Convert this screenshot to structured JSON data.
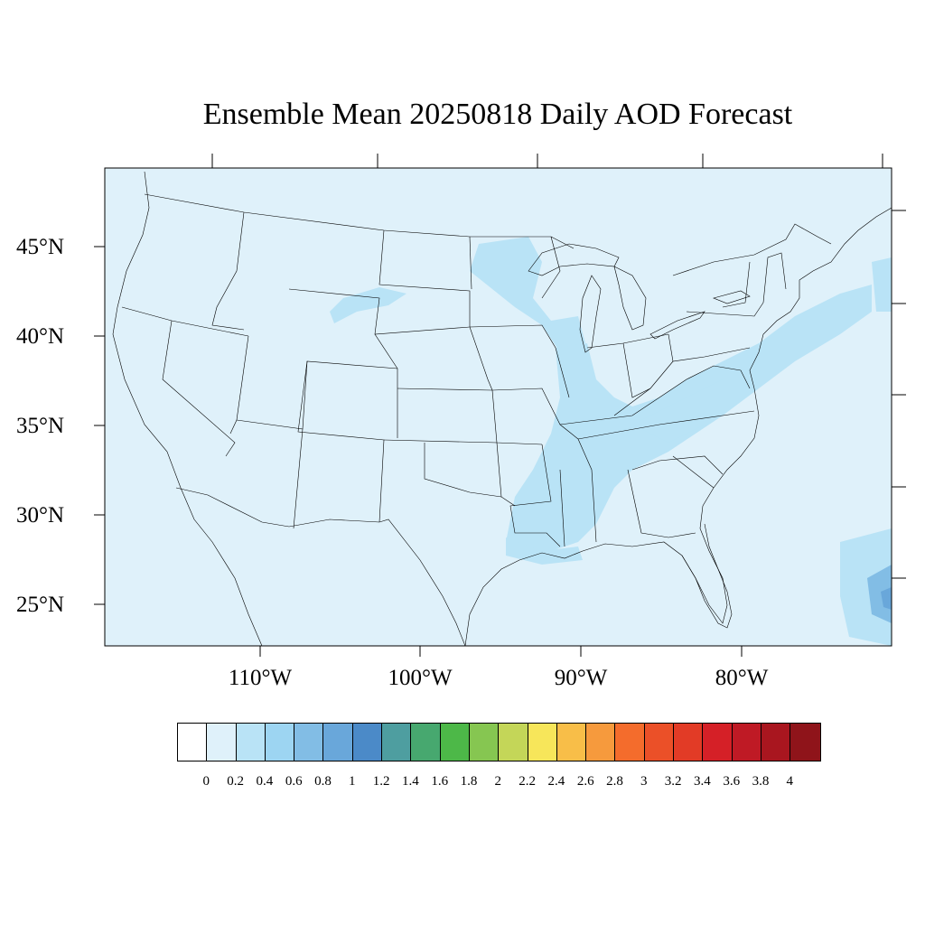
{
  "title": "Ensemble Mean 20250818 Daily AOD Forecast",
  "latitude_labels": [
    "45°N",
    "40°N",
    "35°N",
    "30°N",
    "25°N"
  ],
  "longitude_labels": [
    "110°W",
    "100°W",
    "90°W",
    "80°W"
  ],
  "colorbar": {
    "labels": [
      "0",
      "0.2",
      "0.4",
      "0.6",
      "0.8",
      "1",
      "1.2",
      "1.4",
      "1.6",
      "1.8",
      "2",
      "2.2",
      "2.4",
      "2.6",
      "2.8",
      "3",
      "3.2",
      "3.4",
      "3.6",
      "3.8",
      "4"
    ],
    "colors": [
      "#ffffff",
      "#dff1fa",
      "#b9e3f6",
      "#9dd5f2",
      "#82bde5",
      "#69a7da",
      "#4b8ac8",
      "#4e9ea0",
      "#47a86f",
      "#4db848",
      "#86c651",
      "#c4d658",
      "#f7e65a",
      "#f8be48",
      "#f69a3d",
      "#f46c2c",
      "#eb5028",
      "#e23b26",
      "#d52027",
      "#bf1a25",
      "#a9161f",
      "#8f141a"
    ]
  },
  "colors": {
    "map_background": "#dff1fa",
    "aod_plume": "#b9e3f6",
    "aod_high": "#82bde5"
  }
}
